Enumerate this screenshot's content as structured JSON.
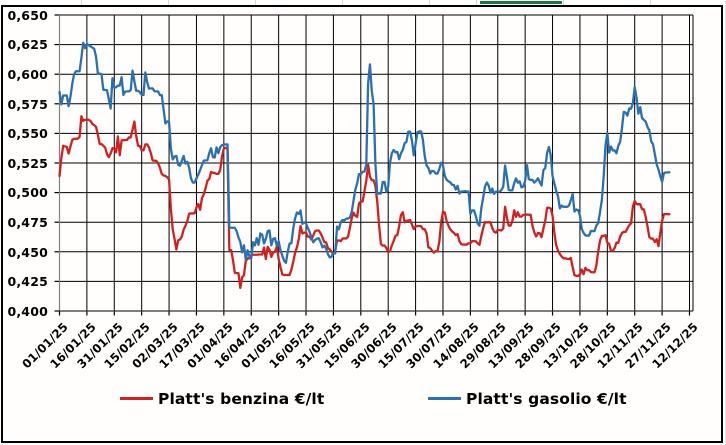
{
  "chart_data": {
    "type": "line",
    "title": "",
    "x_tick_labels": [
      "01/01/25",
      "16/01/25",
      "31/01/25",
      "15/02/25",
      "02/03/25",
      "17/03/25",
      "01/04/25",
      "16/04/25",
      "01/05/25",
      "16/05/25",
      "31/05/25",
      "15/06/25",
      "30/06/25",
      "15/07/25",
      "30/07/25",
      "14/08/25",
      "29/08/25",
      "13/09/25",
      "28/09/25",
      "13/10/25",
      "28/10/25",
      "12/11/25",
      "27/11/25",
      "12/12/25"
    ],
    "x_tick_interval_days": 15,
    "y_tick_labels": [
      "0,650",
      "0,625",
      "0,600",
      "0,575",
      "0,550",
      "0,525",
      "0,500",
      "0,475",
      "0,450",
      "0,425",
      "0,400"
    ],
    "ylim": [
      0.4,
      0.65
    ],
    "y_major_unit": 0.025,
    "grid": "both",
    "legend_position": "bottom",
    "series": [
      {
        "name": "Platt's benzina €/lt",
        "color": "#d02121",
        "values_eur_per_lt": [
          0.514,
          0.529,
          0.5395,
          0.539,
          0.5385,
          0.533,
          0.539,
          0.5445,
          0.5455,
          0.5455,
          0.5455,
          0.547,
          0.5645,
          0.5605,
          0.5615,
          0.5615,
          0.5615,
          0.5605,
          0.558,
          0.557,
          0.5555,
          0.549,
          0.5411,
          0.541,
          0.5395,
          0.538,
          0.5325,
          0.5299,
          0.533,
          0.5375,
          0.5373,
          0.534,
          0.5475,
          0.5316,
          0.5441,
          0.5443,
          0.5443,
          0.5445,
          0.5466,
          0.5466,
          0.553,
          0.56,
          0.548,
          0.5396,
          0.5393,
          0.5359,
          0.5357,
          0.5407,
          0.5407,
          0.5382,
          0.5334,
          0.5271,
          0.5269,
          0.5269,
          0.5248,
          0.5209,
          0.5157,
          0.5145,
          0.514,
          0.513,
          0.511,
          0.4863,
          0.469,
          0.461,
          0.4519,
          0.4598,
          0.4604,
          0.463,
          0.4689,
          0.472,
          0.476,
          0.4822,
          0.4824,
          0.4824,
          0.4826,
          0.4875,
          0.4903,
          0.4855,
          0.4953,
          0.4985,
          0.5037,
          0.51,
          0.5115,
          0.5174,
          0.5168,
          0.5166,
          0.5157,
          0.5158,
          0.5191,
          0.5305,
          0.5373,
          0.5378,
          0.5367,
          0.4515,
          0.4514,
          0.443,
          0.4322,
          0.432,
          0.432,
          0.4195,
          0.4285,
          0.4301,
          0.4422,
          0.4444,
          0.4444,
          0.4473,
          0.4475,
          0.4475,
          0.4475,
          0.4477,
          0.4477,
          0.4477,
          0.4536,
          0.4439,
          0.4542,
          0.4517,
          0.4457,
          0.4496,
          0.4498,
          0.4545,
          0.444,
          0.4371,
          0.431,
          0.4304,
          0.4304,
          0.4304,
          0.4304,
          0.4349,
          0.4417,
          0.449,
          0.4537,
          0.4605,
          0.4718,
          0.4655,
          0.4662,
          0.4662,
          0.4628,
          0.4628,
          0.4603,
          0.464,
          0.4675,
          0.468,
          0.468,
          0.4656,
          0.4622,
          0.4582,
          0.458,
          0.4531,
          0.452,
          0.45,
          0.448,
          0.4509,
          0.4594,
          0.4596,
          0.459,
          0.4611,
          0.4613,
          0.4613,
          0.4628,
          0.47,
          0.4783,
          0.483,
          0.4806,
          0.4794,
          0.4908,
          0.4925,
          0.4925,
          0.501,
          0.51,
          0.5235,
          0.5135,
          0.5105,
          0.5105,
          0.5055,
          0.4925,
          0.4725,
          0.4566,
          0.4552,
          0.4553,
          0.4532,
          0.4495,
          0.4505,
          0.4555,
          0.4592,
          0.4635,
          0.464,
          0.4715,
          0.4811,
          0.4834,
          0.4749,
          0.4762,
          0.4764,
          0.4768,
          0.473,
          0.4692,
          0.4715,
          0.4717,
          0.4717,
          0.4717,
          0.4692,
          0.469,
          0.4657,
          0.4538,
          0.4532,
          0.451,
          0.4493,
          0.4505,
          0.4505,
          0.4585,
          0.475,
          0.484,
          0.483,
          0.476,
          0.472,
          0.469,
          0.4672,
          0.466,
          0.464,
          0.465,
          0.459,
          0.4565,
          0.4561,
          0.4561,
          0.4561,
          0.4572,
          0.4572,
          0.459,
          0.459,
          0.4588,
          0.4571,
          0.4559,
          0.4634,
          0.47,
          0.4751,
          0.4749,
          0.475,
          0.4749,
          0.47,
          0.467,
          0.4662,
          0.4685,
          0.4683,
          0.468,
          0.4697,
          0.488,
          0.479,
          0.4721,
          0.472,
          0.476,
          0.4851,
          0.4795,
          0.4834,
          0.4797,
          0.4797,
          0.4812,
          0.4813,
          0.4815,
          0.4813,
          0.4813,
          0.4721,
          0.4664,
          0.463,
          0.4657,
          0.4657,
          0.4624,
          0.4698,
          0.476,
          0.4872,
          0.4872,
          0.4866,
          0.4806,
          0.466,
          0.4555,
          0.451,
          0.4481,
          0.446,
          0.4445,
          0.4445,
          0.444,
          0.4438,
          0.4448,
          0.437,
          0.4303,
          0.4297,
          0.4297,
          0.431,
          0.435,
          0.4311,
          0.4365,
          0.4345,
          0.4345,
          0.4329,
          0.4327,
          0.4327,
          0.4386,
          0.45,
          0.4595,
          0.4634,
          0.4634,
          0.464,
          0.4577,
          0.4566,
          0.4509,
          0.4508,
          0.4532,
          0.4577,
          0.4576,
          0.4628,
          0.4658,
          0.4669,
          0.4668,
          0.4697,
          0.4725,
          0.474,
          0.4883,
          0.4929,
          0.4902,
          0.4902,
          0.4902,
          0.486,
          0.4858,
          0.4795,
          0.4715,
          0.4624,
          0.4611,
          0.4611,
          0.4583,
          0.4606,
          0.4548,
          0.4658,
          0.4761,
          0.4818,
          0.4818,
          0.4818,
          0.4817
        ]
      },
      {
        "name": "Platt's gasolio €/lt",
        "color": "#2b70b0",
        "values_eur_per_lt": [
          0.585,
          0.5745,
          0.582,
          0.582,
          0.582,
          0.573,
          0.581,
          0.592,
          0.6,
          0.6025,
          0.6025,
          0.6025,
          0.614,
          0.6265,
          0.622,
          0.6256,
          0.6245,
          0.6235,
          0.6225,
          0.6215,
          0.6149,
          0.6007,
          0.6005,
          0.6,
          0.5869,
          0.5867,
          0.5865,
          0.579,
          0.571,
          0.5966,
          0.5885,
          0.589,
          0.5903,
          0.5905,
          0.5975,
          0.5825,
          0.5853,
          0.5855,
          0.5855,
          0.5865,
          0.603,
          0.594,
          0.586,
          0.586,
          0.5848,
          0.5827,
          0.5825,
          0.6015,
          0.5935,
          0.5878,
          0.588,
          0.588,
          0.5856,
          0.5855,
          0.5855,
          0.5823,
          0.5823,
          0.5703,
          0.5584,
          0.5601,
          0.5598,
          0.537,
          0.528,
          0.5305,
          0.531,
          0.5235,
          0.5227,
          0.527,
          0.531,
          0.5245,
          0.526,
          0.5211,
          0.512,
          0.5085,
          0.5085,
          0.512,
          0.5152,
          0.519,
          0.5231,
          0.527,
          0.5272,
          0.5272,
          0.5333,
          0.5375,
          0.5299,
          0.5297,
          0.5382,
          0.5333,
          0.5384,
          0.5401,
          0.5405,
          0.5407,
          0.5407,
          0.4705,
          0.4703,
          0.4703,
          0.4703,
          0.4674,
          0.4621,
          0.4585,
          0.4495,
          0.4555,
          0.4434,
          0.4513,
          0.4462,
          0.4445,
          0.4581,
          0.4554,
          0.4615,
          0.4559,
          0.4655,
          0.4645,
          0.457,
          0.461,
          0.4675,
          0.468,
          0.4555,
          0.4609,
          0.4615,
          0.455,
          0.459,
          0.4514,
          0.4468,
          0.4424,
          0.4407,
          0.4501,
          0.457,
          0.4572,
          0.4696,
          0.4781,
          0.4832,
          0.482,
          0.4849,
          0.4736,
          0.4748,
          0.474,
          0.47,
          0.4666,
          0.462,
          0.458,
          0.46,
          0.4611,
          0.4615,
          0.4582,
          0.4537,
          0.4552,
          0.4526,
          0.448,
          0.4452,
          0.446,
          0.449,
          0.4487,
          0.4713,
          0.469,
          0.4751,
          0.4768,
          0.4766,
          0.4779,
          0.4781,
          0.479,
          0.4834,
          0.4931,
          0.5024,
          0.5078,
          0.5156,
          0.5156,
          0.5175,
          0.5178,
          0.5236,
          0.592,
          0.6083,
          0.586,
          0.5745,
          0.524,
          0.4992,
          0.4992,
          0.4992,
          0.5089,
          0.509,
          0.5004,
          0.505,
          0.5253,
          0.5333,
          0.536,
          0.534,
          0.5344,
          0.5282,
          0.5333,
          0.5361,
          0.5417,
          0.5429,
          0.5515,
          0.5515,
          0.544,
          0.5315,
          0.5412,
          0.5509,
          0.5517,
          0.5517,
          0.5446,
          0.5309,
          0.5229,
          0.5209,
          0.5161,
          0.5184,
          0.518,
          0.5161,
          0.516,
          0.52,
          0.5253,
          0.523,
          0.514,
          0.5109,
          0.5095,
          0.5087,
          0.5066,
          0.5064,
          0.5026,
          0.5057,
          0.4992,
          0.5009,
          0.5009,
          0.5012,
          0.5009,
          0.5009,
          0.4821,
          0.485,
          0.485,
          0.4801,
          0.4739,
          0.472,
          0.4869,
          0.4954,
          0.5051,
          0.5085,
          0.506,
          0.5,
          0.5034,
          0.4989,
          0.5008,
          0.5008,
          0.5008,
          0.5021,
          0.505,
          0.5229,
          0.5135,
          0.5022,
          0.5019,
          0.5019,
          0.508,
          0.512,
          0.5084,
          0.5095,
          0.5044,
          0.5051,
          0.51,
          0.5232,
          0.5113,
          0.5107,
          0.5107,
          0.5084,
          0.51,
          0.5121,
          0.5089,
          0.506,
          0.5191,
          0.5207,
          0.5334,
          0.5385,
          0.5317,
          0.514,
          0.5077,
          0.5014,
          0.497,
          0.4867,
          0.489,
          0.488,
          0.488,
          0.488,
          0.489,
          0.4936,
          0.4988,
          0.484,
          0.4857,
          0.4852,
          0.4806,
          0.4694,
          0.4659,
          0.4638,
          0.4637,
          0.4637,
          0.4676,
          0.4675,
          0.4675,
          0.4722,
          0.4742,
          0.4836,
          0.4937,
          0.5136,
          0.54,
          0.5503,
          0.5338,
          0.5389,
          0.5356,
          0.5356,
          0.5332,
          0.5395,
          0.5428,
          0.5543,
          0.5682,
          0.5676,
          0.565,
          0.5711,
          0.5708,
          0.5757,
          0.5891,
          0.5803,
          0.5666,
          0.5722,
          0.563,
          0.5615,
          0.56,
          0.5554,
          0.5526,
          0.5434,
          0.541,
          0.5326,
          0.5241,
          0.5195,
          0.5138,
          0.509,
          0.5165,
          0.517,
          0.517,
          0.5172
        ]
      }
    ]
  },
  "legend": {
    "benzina_label": "Platt's benzina €/lt",
    "gasolio_label": "Platt's gasolio €/lt"
  },
  "spreadsheet": {
    "selection_color": "#217346"
  },
  "colors": {
    "benzina": "#d02121",
    "gasolio": "#2b70b0",
    "gridline": "#000000",
    "axis": "#808080",
    "chart_border": "#000000"
  }
}
